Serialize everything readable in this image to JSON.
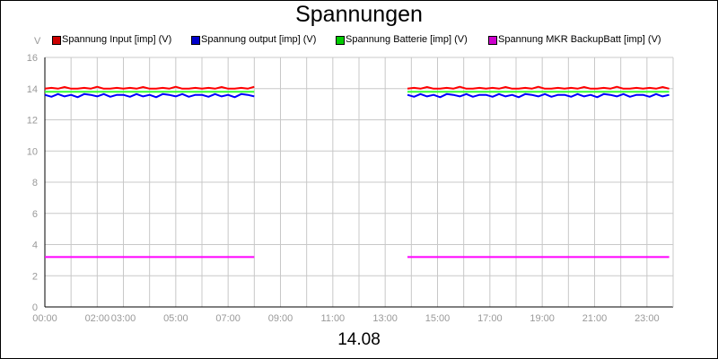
{
  "chart_data": {
    "type": "line",
    "title": "Spannungen",
    "xlabel": "14.08",
    "ylabel": "V",
    "ylim": [
      0,
      16
    ],
    "yticks": [
      0,
      2,
      4,
      6,
      8,
      10,
      12,
      14,
      16
    ],
    "xlim": [
      0,
      24
    ],
    "xticks": [
      {
        "h": 0,
        "label": "00:00"
      },
      {
        "h": 2,
        "label": "02:00"
      },
      {
        "h": 3,
        "label": "03:00"
      },
      {
        "h": 5,
        "label": "05:00"
      },
      {
        "h": 7,
        "label": "07:00"
      },
      {
        "h": 9,
        "label": "09:00"
      },
      {
        "h": 11,
        "label": "11:00"
      },
      {
        "h": 13,
        "label": "13:00"
      },
      {
        "h": 15,
        "label": "15:00"
      },
      {
        "h": 17,
        "label": "17:00"
      },
      {
        "h": 19,
        "label": "19:00"
      },
      {
        "h": 21,
        "label": "21:00"
      },
      {
        "h": 23,
        "label": "23:00"
      }
    ],
    "grid": true,
    "legend_position": "top",
    "segments": [
      [
        0,
        8.05
      ],
      [
        13.85,
        24
      ]
    ],
    "series": [
      {
        "name": "Spannung Input [imp] (V)",
        "color": "#ff0000",
        "swatch": "#cc0000",
        "base": 14.0,
        "pattern": [
          0,
          0.05,
          0,
          0.1,
          0,
          0,
          0.05,
          0,
          0.12,
          0,
          0,
          0.05
        ]
      },
      {
        "name": "Spannung output [imp] (V)",
        "color": "#0000ff",
        "swatch": "#0000cc",
        "base": 13.6,
        "pattern": [
          0,
          -0.12,
          0.05,
          -0.1,
          0,
          -0.15,
          0.05,
          0,
          -0.1,
          0.05,
          -0.12,
          0
        ]
      },
      {
        "name": "Spannung Batterie [imp] (V)",
        "color": "#33ff33",
        "swatch": "#00cc00",
        "base": 13.8,
        "pattern": [
          0
        ]
      },
      {
        "name": "Spannung MKR BackupBatt [imp] (V)",
        "color": "#ff00ff",
        "swatch": "#cc00cc",
        "base": 3.2,
        "pattern": [
          0
        ]
      }
    ]
  }
}
